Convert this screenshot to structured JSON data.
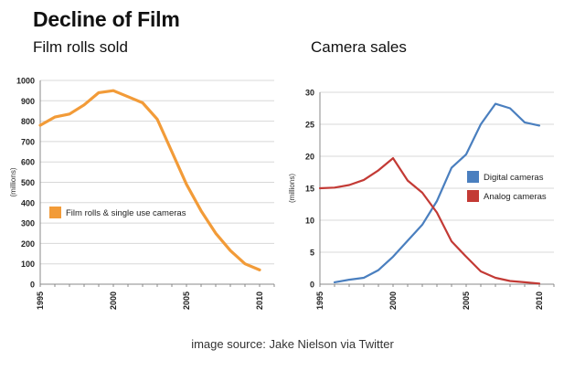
{
  "title": "Decline of Film",
  "caption": "image source: Jake Nielson via Twitter",
  "colors": {
    "film": "#f29b38",
    "digital": "#4a7fbf",
    "analog": "#c33a35",
    "grid": "#d8d8d8",
    "axis": "#888888"
  },
  "chart_data": [
    {
      "type": "line",
      "title": "Film rolls sold",
      "xlabel": "",
      "ylabel": "(millions)",
      "xlim": [
        1995,
        2011
      ],
      "ylim": [
        0,
        1000
      ],
      "xticks": [
        1995,
        2000,
        2005,
        2010
      ],
      "yticks": [
        0,
        100,
        200,
        300,
        400,
        500,
        600,
        700,
        800,
        900,
        1000
      ],
      "legend_position": "middle-left",
      "series": [
        {
          "name": "Film rolls & single use cameras",
          "color": "#f29b38",
          "x": [
            1995,
            1996,
            1997,
            1998,
            1999,
            2000,
            2001,
            2002,
            2003,
            2004,
            2005,
            2006,
            2007,
            2008,
            2009,
            2010
          ],
          "values": [
            780,
            820,
            835,
            880,
            940,
            950,
            920,
            890,
            810,
            650,
            490,
            360,
            250,
            165,
            100,
            70
          ]
        }
      ]
    },
    {
      "type": "line",
      "title": "Camera sales",
      "xlabel": "",
      "ylabel": "(millions)",
      "xlim": [
        1995,
        2011
      ],
      "ylim": [
        0,
        30
      ],
      "xticks": [
        1995,
        2000,
        2005,
        2010
      ],
      "yticks": [
        0,
        5,
        10,
        15,
        20,
        25,
        30
      ],
      "legend_position": "right-middle",
      "series": [
        {
          "name": "Digital cameras",
          "color": "#4a7fbf",
          "x": [
            1996,
            1997,
            1998,
            1999,
            2000,
            2001,
            2002,
            2003,
            2004,
            2005,
            2006,
            2007,
            2008,
            2009,
            2010
          ],
          "values": [
            0.3,
            0.7,
            1.0,
            2.2,
            4.3,
            6.8,
            9.3,
            13.0,
            18.2,
            20.3,
            25.0,
            28.2,
            27.5,
            25.3,
            24.8
          ]
        },
        {
          "name": "Analog cameras",
          "color": "#c33a35",
          "x": [
            1995,
            1996,
            1997,
            1998,
            1999,
            2000,
            2001,
            2002,
            2003,
            2004,
            2005,
            2006,
            2007,
            2008,
            2009,
            2010
          ],
          "values": [
            15.0,
            15.1,
            15.5,
            16.3,
            17.8,
            19.7,
            16.2,
            14.3,
            11.2,
            6.7,
            4.3,
            2.0,
            1.0,
            0.5,
            0.3,
            0.1
          ]
        }
      ]
    }
  ]
}
